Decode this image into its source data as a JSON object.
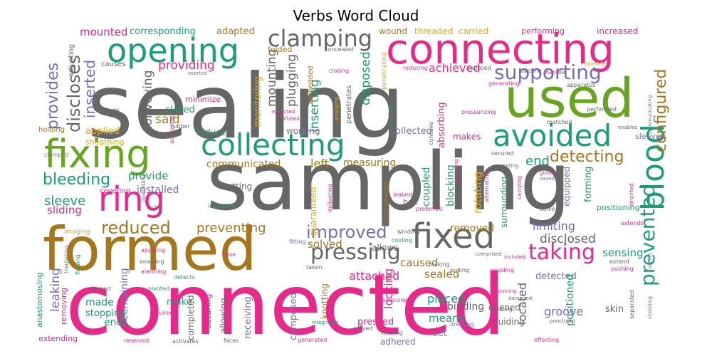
{
  "title": "Verbs Word Cloud",
  "palette": {
    "pink": "#e7298a",
    "gray": "#666666",
    "teal": "#1b9e77",
    "green": "#66a61e",
    "brown": "#a6761d",
    "purple": "#7570b3",
    "orange": "#d95f02",
    "gold": "#e6ab02"
  },
  "words": [
    {
      "text": "sealing",
      "color": "gray"
    },
    {
      "text": "sampling",
      "color": "gray"
    },
    {
      "text": "connected",
      "color": "pink"
    },
    {
      "text": "connecting",
      "color": "pink"
    },
    {
      "text": "formed",
      "color": "brown"
    },
    {
      "text": "used",
      "color": "green"
    },
    {
      "text": "opening",
      "color": "teal"
    },
    {
      "text": "fixing",
      "color": "green"
    },
    {
      "text": "collecting",
      "color": "teal"
    },
    {
      "text": "avoided",
      "color": "teal"
    },
    {
      "text": "blood",
      "color": "teal"
    },
    {
      "text": "fixed",
      "color": "gray"
    },
    {
      "text": "ring",
      "color": "pink"
    },
    {
      "text": "clamping",
      "color": "gray"
    },
    {
      "text": "supporting",
      "color": "purple"
    },
    {
      "text": "pressing",
      "color": "gray"
    },
    {
      "text": "taking",
      "color": "pink"
    },
    {
      "text": "configured",
      "color": "brown"
    },
    {
      "text": "prevented",
      "color": "teal"
    },
    {
      "text": "discloses",
      "color": "gray"
    },
    {
      "text": "provides",
      "color": "purple"
    },
    {
      "text": "inserted",
      "color": "purple"
    },
    {
      "text": "detecting",
      "color": "brown"
    },
    {
      "text": "bleeding",
      "color": "teal"
    },
    {
      "text": "reduced",
      "color": "brown"
    },
    {
      "text": "improved",
      "color": "purple"
    },
    {
      "text": "preventing",
      "color": "brown"
    },
    {
      "text": "mounted",
      "color": "pink"
    },
    {
      "text": "corresponding",
      "color": "teal"
    },
    {
      "text": "adapted",
      "color": "brown"
    },
    {
      "text": "providing",
      "color": "pink"
    },
    {
      "text": "conveying",
      "color": "gray"
    },
    {
      "text": "mounting",
      "color": "gray"
    },
    {
      "text": "plugging",
      "color": "gray"
    },
    {
      "text": "inserting",
      "color": "teal"
    },
    {
      "text": "disposed",
      "color": "teal"
    },
    {
      "text": "achieved",
      "color": "pink"
    },
    {
      "text": "monitoring",
      "color": "gold"
    },
    {
      "text": "closed",
      "color": "teal"
    },
    {
      "text": "applied",
      "color": "gold"
    },
    {
      "text": "said",
      "color": "brown"
    },
    {
      "text": "working",
      "color": "purple"
    },
    {
      "text": "collected",
      "color": "purple"
    },
    {
      "text": "end",
      "color": "teal"
    },
    {
      "text": "sleeve",
      "color": "teal"
    },
    {
      "text": "sliding",
      "color": "pink"
    },
    {
      "text": "provide",
      "color": "teal"
    },
    {
      "text": "installed",
      "color": "purple"
    },
    {
      "text": "reduce",
      "color": "teal"
    },
    {
      "text": "communicated",
      "color": "brown"
    },
    {
      "text": "left",
      "color": "brown"
    },
    {
      "text": "measuring",
      "color": "brown"
    },
    {
      "text": "cutting",
      "color": "gray"
    },
    {
      "text": "coupled",
      "color": "teal"
    },
    {
      "text": "blocking",
      "color": "teal"
    },
    {
      "text": "rotating",
      "color": "gold"
    },
    {
      "text": "surrounding",
      "color": "teal"
    },
    {
      "text": "forming",
      "color": "teal"
    },
    {
      "text": "equipped",
      "color": "purple"
    },
    {
      "text": "limiting",
      "color": "purple"
    },
    {
      "text": "removed",
      "color": "brown"
    },
    {
      "text": "disclosed",
      "color": "gray"
    },
    {
      "text": "sensing",
      "color": "teal"
    },
    {
      "text": "positioning",
      "color": "teal"
    },
    {
      "text": "solved",
      "color": "brown"
    },
    {
      "text": "allows",
      "color": "gray"
    },
    {
      "text": "caused",
      "color": "brown"
    },
    {
      "text": "sealed",
      "color": "brown"
    },
    {
      "text": "attached",
      "color": "pink"
    },
    {
      "text": "leaking",
      "color": "purple"
    },
    {
      "text": "made",
      "color": "teal"
    },
    {
      "text": "ends",
      "color": "teal"
    },
    {
      "text": "containing",
      "color": "purple"
    },
    {
      "text": "make",
      "color": "teal"
    },
    {
      "text": "placed",
      "color": "teal"
    },
    {
      "text": "binding",
      "color": "gray"
    },
    {
      "text": "means",
      "color": "teal"
    },
    {
      "text": "located",
      "color": "gray"
    },
    {
      "text": "detected",
      "color": "purple"
    },
    {
      "text": "positioned",
      "color": "teal"
    },
    {
      "text": "groove",
      "color": "purple"
    },
    {
      "text": "guiding",
      "color": "gray"
    },
    {
      "text": "opened",
      "color": "gray"
    },
    {
      "text": "skin",
      "color": "gray"
    },
    {
      "text": "pressed",
      "color": "pink"
    },
    {
      "text": "composed",
      "color": "purple"
    },
    {
      "text": "receiving",
      "color": "purple"
    },
    {
      "text": "suturing",
      "color": "pink"
    },
    {
      "text": "allowing",
      "color": "gray"
    },
    {
      "text": "completed",
      "color": "gray"
    },
    {
      "text": "stopping",
      "color": "teal"
    },
    {
      "text": "knotting",
      "color": "brown"
    },
    {
      "text": "locking",
      "color": "pink"
    },
    {
      "text": "set",
      "color": "purple"
    },
    {
      "text": "adhered",
      "color": "purple"
    },
    {
      "text": "extending",
      "color": "pink"
    },
    {
      "text": "anastomosing",
      "color": "teal"
    },
    {
      "text": "removing",
      "color": "pink"
    },
    {
      "text": "threaded",
      "color": "gold"
    },
    {
      "text": "carried",
      "color": "gold"
    },
    {
      "text": "wound",
      "color": "brown"
    },
    {
      "text": "performing",
      "color": "pink"
    },
    {
      "text": "increased",
      "color": "pink"
    },
    {
      "text": "folded",
      "color": "brown"
    },
    {
      "text": "causes",
      "color": "gray"
    },
    {
      "text": "adjusting",
      "color": "gray"
    },
    {
      "text": "minimize",
      "color": "pink"
    },
    {
      "text": "embedded",
      "color": "brown"
    },
    {
      "text": "penetrates",
      "color": "gray"
    },
    {
      "text": "absorbing",
      "color": "pink"
    },
    {
      "text": "makes",
      "color": "pink"
    },
    {
      "text": "sleeved",
      "color": "purple"
    },
    {
      "text": "covering",
      "color": "pink"
    },
    {
      "text": "compressed",
      "color": "brown"
    },
    {
      "text": "guaranteed",
      "color": "gold"
    },
    {
      "text": "belt",
      "color": "gray"
    },
    {
      "text": "holding",
      "color": "brown"
    },
    {
      "text": "sheathing",
      "color": "gold"
    },
    {
      "text": "concealed",
      "color": "gray"
    },
    {
      "text": "closing",
      "color": "pink"
    },
    {
      "text": "exposed",
      "color": "gray"
    },
    {
      "text": "reducing",
      "color": "pink"
    },
    {
      "text": "penetrating",
      "color": "gold"
    },
    {
      "text": "passing",
      "color": "gray"
    },
    {
      "text": "handle",
      "color": "pink"
    },
    {
      "text": "operate",
      "color": "gold"
    },
    {
      "text": "apparatus",
      "color": "gray"
    },
    {
      "text": "generating",
      "color": "pink"
    },
    {
      "text": "performed",
      "color": "gray"
    },
    {
      "text": "communicating",
      "color": "purple"
    },
    {
      "text": "pressurizing",
      "color": "pink"
    },
    {
      "text": "matched",
      "color": "gray"
    },
    {
      "text": "enables",
      "color": "gray"
    },
    {
      "text": "placing",
      "color": "teal"
    },
    {
      "text": "concave",
      "color": "gray"
    },
    {
      "text": "exerted",
      "color": "purple"
    },
    {
      "text": "model",
      "color": "gray"
    },
    {
      "text": "expected",
      "color": "pink"
    },
    {
      "text": "inflated",
      "color": "pink"
    },
    {
      "text": "arranging",
      "color": "gold"
    },
    {
      "text": "rubber",
      "color": "gray"
    },
    {
      "text": "accessing",
      "color": "pink"
    },
    {
      "text": "secured",
      "color": "gray"
    },
    {
      "text": "venting",
      "color": "gray"
    },
    {
      "text": "glove",
      "color": "pink"
    },
    {
      "text": "saved",
      "color": "purple"
    },
    {
      "text": "clamped",
      "color": "purple"
    },
    {
      "text": "operating",
      "color": "purple"
    },
    {
      "text": "leaked",
      "color": "pink"
    },
    {
      "text": "producing",
      "color": "pink"
    },
    {
      "text": "alternating",
      "color": "pink"
    },
    {
      "text": "carrying",
      "color": "pink"
    },
    {
      "text": "amplified",
      "color": "pink"
    },
    {
      "text": "living",
      "color": "gray"
    },
    {
      "text": "indwelling",
      "color": "teal"
    },
    {
      "text": "preferred",
      "color": "pink"
    },
    {
      "text": "valve",
      "color": "gray"
    },
    {
      "text": "delivering",
      "color": "pink"
    },
    {
      "text": "extends",
      "color": "pink"
    },
    {
      "text": "imaging",
      "color": "gold"
    },
    {
      "text": "fitting",
      "color": "purple"
    },
    {
      "text": "cooling",
      "color": "teal"
    },
    {
      "text": "winding",
      "color": "gray"
    },
    {
      "text": "comprised",
      "color": "gray"
    },
    {
      "text": "included",
      "color": "pink"
    },
    {
      "text": "extend",
      "color": "gray"
    },
    {
      "text": "pushing",
      "color": "pink"
    },
    {
      "text": "occurs",
      "color": "purple"
    },
    {
      "text": "applying",
      "color": "pink"
    },
    {
      "text": "enabling",
      "color": "gray"
    },
    {
      "text": "alarming",
      "color": "pink"
    },
    {
      "text": "insulating",
      "color": "gray"
    },
    {
      "text": "flowing",
      "color": "teal"
    },
    {
      "text": "hose",
      "color": "pink"
    },
    {
      "text": "taken",
      "color": "gray"
    },
    {
      "text": "pulling",
      "color": "gray"
    },
    {
      "text": "coupling",
      "color": "pink"
    },
    {
      "text": "detects",
      "color": "teal"
    },
    {
      "text": "hinged",
      "color": "gray"
    },
    {
      "text": "pivoted",
      "color": "teal"
    },
    {
      "text": "required",
      "color": "pink"
    },
    {
      "text": "bypassing",
      "color": "pink"
    },
    {
      "text": "remaining",
      "color": "pink"
    },
    {
      "text": "damaged",
      "color": "gray"
    },
    {
      "text": "abutting",
      "color": "gray"
    },
    {
      "text": "punctured",
      "color": "gray"
    },
    {
      "text": "shedding",
      "color": "purple"
    },
    {
      "text": "integrated",
      "color": "teal"
    },
    {
      "text": "dressing",
      "color": "purple"
    },
    {
      "text": "moved",
      "color": "gray"
    },
    {
      "text": "tacking",
      "color": "gray"
    },
    {
      "text": "generated",
      "color": "pink"
    },
    {
      "text": "reserved",
      "color": "pink"
    },
    {
      "text": "activates",
      "color": "gray"
    },
    {
      "text": "faces",
      "color": "gray"
    },
    {
      "text": "effecting",
      "color": "pink"
    },
    {
      "text": "separated",
      "color": "gray"
    },
    {
      "text": "making",
      "color": "gray"
    }
  ]
}
